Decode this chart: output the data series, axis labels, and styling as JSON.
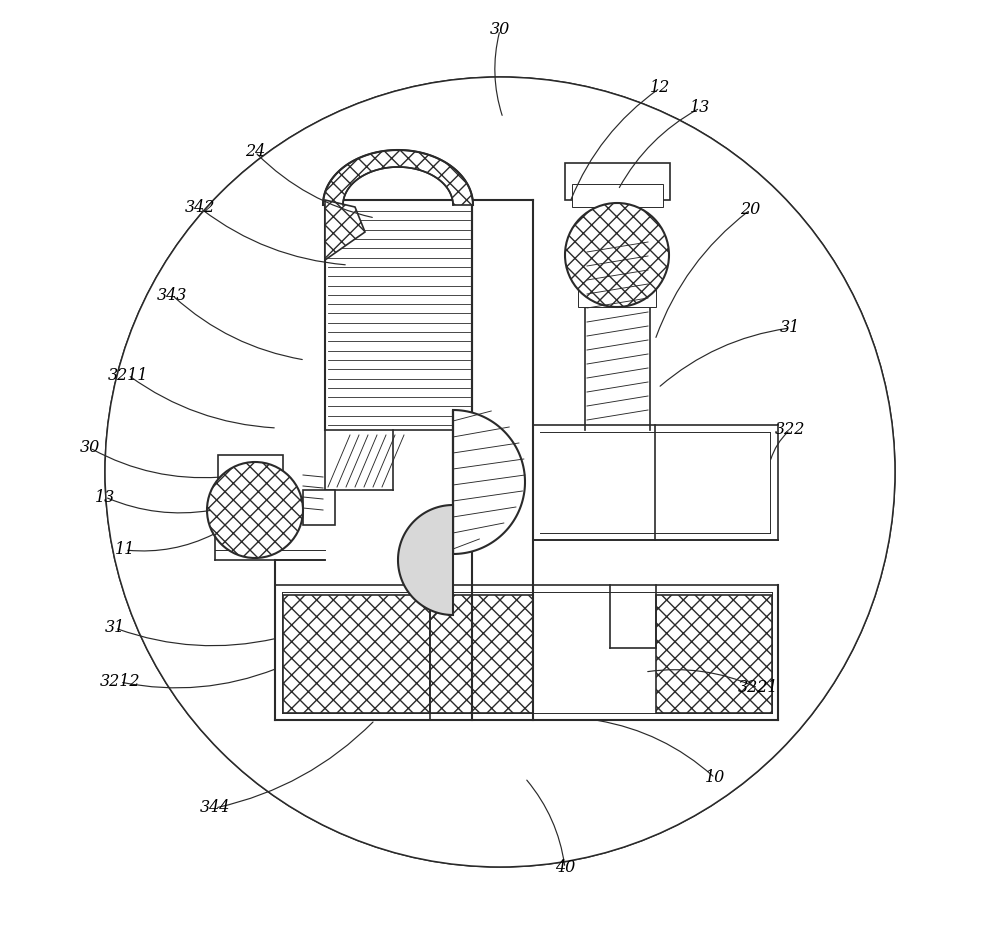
{
  "bg_color": "#ffffff",
  "lc": "#2a2a2a",
  "annotations": [
    [
      "30",
      500,
      30,
      503,
      118
    ],
    [
      "12",
      660,
      88,
      570,
      202
    ],
    [
      "13",
      700,
      108,
      618,
      190
    ],
    [
      "24",
      255,
      152,
      375,
      218
    ],
    [
      "342",
      200,
      208,
      348,
      265
    ],
    [
      "20",
      750,
      210,
      655,
      340
    ],
    [
      "343",
      172,
      295,
      305,
      360
    ],
    [
      "31",
      790,
      328,
      658,
      388
    ],
    [
      "3211",
      128,
      375,
      277,
      428
    ],
    [
      "322",
      790,
      430,
      770,
      462
    ],
    [
      "30",
      90,
      448,
      222,
      477
    ],
    [
      "13",
      105,
      497,
      213,
      510
    ],
    [
      "11",
      125,
      550,
      216,
      533
    ],
    [
      "31",
      115,
      628,
      278,
      638
    ],
    [
      "3212",
      120,
      682,
      278,
      668
    ],
    [
      "3221",
      758,
      688,
      645,
      672
    ],
    [
      "344",
      215,
      808,
      375,
      720
    ],
    [
      "10",
      715,
      778,
      595,
      720
    ],
    [
      "40",
      565,
      868,
      525,
      778
    ]
  ]
}
